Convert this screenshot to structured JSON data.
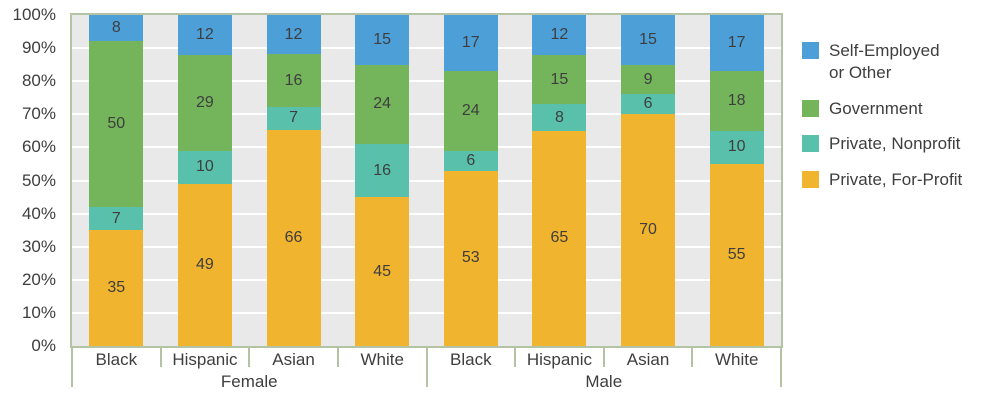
{
  "chart_data": {
    "type": "bar",
    "stacked": true,
    "value_unit": "percent",
    "groups": [
      "Female",
      "Male"
    ],
    "categories": [
      "Black",
      "Hispanic",
      "Asian",
      "White",
      "Black",
      "Hispanic",
      "Asian",
      "White"
    ],
    "series": [
      {
        "name": "Private, For-Profit",
        "color": "#F1B42F",
        "values": [
          35,
          49,
          66,
          45,
          53,
          65,
          70,
          55
        ]
      },
      {
        "name": "Private, Nonprofit",
        "color": "#59C1AB",
        "values": [
          7,
          10,
          7,
          16,
          6,
          8,
          6,
          10
        ]
      },
      {
        "name": "Government",
        "color": "#74B55C",
        "values": [
          50,
          29,
          16,
          24,
          24,
          15,
          9,
          18
        ]
      },
      {
        "name": "Self-Employed or Other",
        "color": "#4D9FD8",
        "values": [
          8,
          12,
          12,
          15,
          17,
          12,
          15,
          17
        ]
      }
    ],
    "y_axis": {
      "ticks": [
        "100%",
        "90%",
        "80%",
        "70%",
        "60%",
        "50%",
        "40%",
        "30%",
        "20%",
        "10%",
        "0%"
      ],
      "min": 0,
      "max": 100,
      "grid": true
    },
    "legend": {
      "position": "right",
      "items": [
        {
          "lines": [
            "Self-Employed",
            "or Other"
          ],
          "color": "#4D9FD8"
        },
        {
          "lines": [
            "Government"
          ],
          "color": "#74B55C"
        },
        {
          "lines": [
            "Private, Nonprofit"
          ],
          "color": "#59C1AB"
        },
        {
          "lines": [
            "Private, For-Profit"
          ],
          "color": "#F1B42F"
        }
      ]
    },
    "colors": {
      "plot_background": "#E9E9E9",
      "gridline": "#FFFFFF",
      "axis": "#B5C3A5",
      "text": "#3E3E3E"
    }
  }
}
